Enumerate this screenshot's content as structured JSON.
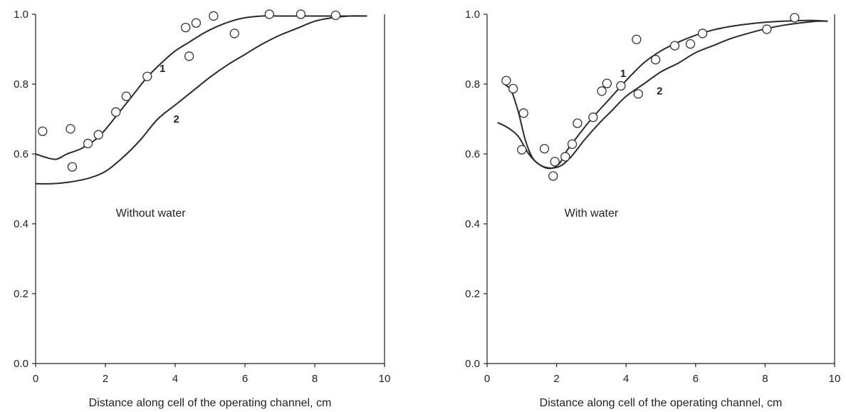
{
  "chart_data": [
    {
      "type": "line",
      "xlabel": "Distance along cell of the operating channel, cm",
      "ylabel": "",
      "xlim": [
        0,
        10
      ],
      "ylim": [
        0.0,
        1.0
      ],
      "x_ticks": [
        "0",
        "2",
        "4",
        "6",
        "8",
        "10"
      ],
      "y_ticks": [
        "0.0",
        "0.2",
        "0.4",
        "0.6",
        "0.8",
        "1.0"
      ],
      "annotation": "Without water",
      "series": [
        {
          "name": "1",
          "x": [
            0,
            0.3,
            0.6,
            0.9,
            1.3,
            1.7,
            2.0,
            2.4,
            2.8,
            3.2,
            3.6,
            4.0,
            4.4,
            4.8,
            5.2,
            5.6,
            6.0,
            6.5,
            7.0,
            7.5,
            8.0,
            8.5,
            9.0,
            9.5
          ],
          "y": [
            0.6,
            0.59,
            0.585,
            0.6,
            0.615,
            0.64,
            0.67,
            0.72,
            0.77,
            0.82,
            0.86,
            0.895,
            0.92,
            0.945,
            0.965,
            0.98,
            0.99,
            0.995,
            0.995,
            0.995,
            0.995,
            0.995,
            0.995,
            0.995
          ]
        },
        {
          "name": "2",
          "x": [
            0,
            0.5,
            1.0,
            1.5,
            2.0,
            2.5,
            3.0,
            3.5,
            4.0,
            4.5,
            5.0,
            5.5,
            6.0,
            6.5,
            7.0,
            7.5,
            8.0,
            8.5,
            9.0,
            9.5
          ],
          "y": [
            0.515,
            0.515,
            0.52,
            0.53,
            0.55,
            0.59,
            0.64,
            0.7,
            0.74,
            0.78,
            0.82,
            0.855,
            0.885,
            0.915,
            0.94,
            0.96,
            0.98,
            0.99,
            0.995,
            0.995
          ]
        }
      ],
      "points": {
        "x": [
          0.2,
          1.0,
          1.05,
          1.5,
          1.8,
          2.3,
          2.6,
          3.2,
          4.3,
          4.4,
          4.6,
          5.1,
          5.7,
          6.7,
          7.6,
          8.6
        ],
        "y": [
          0.665,
          0.672,
          0.563,
          0.63,
          0.655,
          0.72,
          0.765,
          0.822,
          0.962,
          0.88,
          0.975,
          0.995,
          0.945,
          1.0,
          1.0,
          0.997
        ]
      }
    },
    {
      "type": "line",
      "xlabel": "Distance along cell of the operating channel, cm",
      "ylabel": "",
      "xlim": [
        0,
        10
      ],
      "ylim": [
        0.0,
        1.0
      ],
      "x_ticks": [
        "0",
        "2",
        "4",
        "6",
        "8",
        "10"
      ],
      "y_ticks": [
        "0.0",
        "0.2",
        "0.4",
        "0.6",
        "0.8",
        "1.0"
      ],
      "annotation": "With water",
      "series": [
        {
          "name": "1",
          "x": [
            0.5,
            0.7,
            0.9,
            1.1,
            1.3,
            1.5,
            1.7,
            1.9,
            2.1,
            2.3,
            2.6,
            3.0,
            3.5,
            4.0,
            4.5,
            5.0,
            5.5,
            6.0,
            6.5,
            7.0,
            7.5,
            8.0,
            8.5,
            9.0,
            9.5,
            9.8
          ],
          "y": [
            0.8,
            0.78,
            0.72,
            0.64,
            0.59,
            0.57,
            0.56,
            0.56,
            0.575,
            0.61,
            0.65,
            0.7,
            0.755,
            0.81,
            0.86,
            0.895,
            0.92,
            0.94,
            0.955,
            0.965,
            0.972,
            0.977,
            0.98,
            0.982,
            0.982,
            0.98
          ]
        },
        {
          "name": "2",
          "x": [
            0.3,
            0.6,
            0.9,
            1.2,
            1.5,
            1.8,
            2.1,
            2.4,
            2.8,
            3.2,
            3.6,
            4.0,
            4.5,
            5.0,
            5.5,
            6.0,
            6.5,
            7.0,
            7.5,
            8.0,
            8.5,
            9.0,
            9.5,
            9.8
          ],
          "y": [
            0.69,
            0.675,
            0.65,
            0.6,
            0.57,
            0.56,
            0.565,
            0.59,
            0.64,
            0.685,
            0.725,
            0.765,
            0.8,
            0.835,
            0.86,
            0.89,
            0.91,
            0.93,
            0.945,
            0.958,
            0.968,
            0.975,
            0.98,
            0.98
          ]
        }
      ],
      "points": {
        "x": [
          0.55,
          0.75,
          1.0,
          1.05,
          1.65,
          1.9,
          1.95,
          2.25,
          2.45,
          2.6,
          3.05,
          3.3,
          3.45,
          3.85,
          4.3,
          4.35,
          4.85,
          5.4,
          5.85,
          6.2,
          8.05,
          8.85
        ],
        "y": [
          0.81,
          0.787,
          0.612,
          0.717,
          0.615,
          0.537,
          0.578,
          0.592,
          0.628,
          0.688,
          0.705,
          0.78,
          0.802,
          0.795,
          0.928,
          0.772,
          0.87,
          0.91,
          0.915,
          0.945,
          0.957,
          0.99
        ]
      }
    }
  ]
}
